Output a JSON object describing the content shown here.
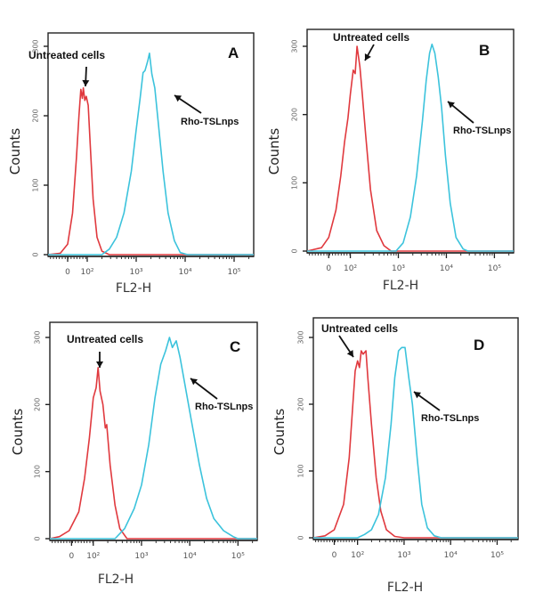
{
  "chart_data": [
    {
      "type": "line",
      "panel": "A",
      "xlabel": "FL2-H",
      "ylabel": "Counts",
      "x_scale": "log (flow cytometry biexponential)",
      "xticks": [
        {
          "value": 1.6,
          "label": "0"
        },
        {
          "value": 2,
          "label": "10²"
        },
        {
          "value": 3,
          "label": "10³"
        },
        {
          "value": 4,
          "label": "10⁴"
        },
        {
          "value": 5,
          "label": "10⁵"
        }
      ],
      "yticks": [
        0,
        100,
        200,
        300
      ],
      "ylim": [
        0,
        320
      ],
      "xlim": [
        1.2,
        5.4
      ],
      "annotations": [
        {
          "text": "Untreated cells",
          "target": "untreated"
        },
        {
          "text": "Rho-TSLnps",
          "target": "rho"
        }
      ],
      "series": [
        {
          "name": "Untreated cells",
          "color": "#e0393e",
          "points": [
            [
              1.2,
              0
            ],
            [
              1.45,
              2
            ],
            [
              1.6,
              15
            ],
            [
              1.7,
              60
            ],
            [
              1.78,
              140
            ],
            [
              1.83,
              200
            ],
            [
              1.87,
              238
            ],
            [
              1.9,
              225
            ],
            [
              1.92,
              240
            ],
            [
              1.95,
              222
            ],
            [
              1.98,
              228
            ],
            [
              2.02,
              215
            ],
            [
              2.06,
              160
            ],
            [
              2.12,
              80
            ],
            [
              2.2,
              25
            ],
            [
              2.3,
              5
            ],
            [
              2.45,
              0
            ],
            [
              5.4,
              0
            ]
          ]
        },
        {
          "name": "Rho-TSLnps",
          "color": "#3cc3dc",
          "points": [
            [
              1.2,
              0
            ],
            [
              2.3,
              0
            ],
            [
              2.45,
              8
            ],
            [
              2.6,
              25
            ],
            [
              2.75,
              60
            ],
            [
              2.9,
              120
            ],
            [
              3.0,
              180
            ],
            [
              3.08,
              225
            ],
            [
              3.14,
              262
            ],
            [
              3.18,
              265
            ],
            [
              3.24,
              280
            ],
            [
              3.27,
              290
            ],
            [
              3.32,
              260
            ],
            [
              3.38,
              240
            ],
            [
              3.45,
              190
            ],
            [
              3.55,
              120
            ],
            [
              3.65,
              60
            ],
            [
              3.78,
              20
            ],
            [
              3.9,
              3
            ],
            [
              4.05,
              0
            ],
            [
              5.4,
              0
            ]
          ]
        }
      ]
    },
    {
      "type": "line",
      "panel": "B",
      "xlabel": "FL2-H",
      "ylabel": "Counts",
      "x_scale": "log (flow cytometry biexponential)",
      "xticks": [
        {
          "value": 1.55,
          "label": "0"
        },
        {
          "value": 2,
          "label": "10²"
        },
        {
          "value": 3,
          "label": "10³"
        },
        {
          "value": 4,
          "label": "10⁴"
        },
        {
          "value": 5,
          "label": "10⁵"
        }
      ],
      "yticks": [
        0,
        100,
        200,
        300
      ],
      "ylim": [
        0,
        320
      ],
      "xlim": [
        1.1,
        5.4
      ],
      "annotations": [
        {
          "text": "Untreated cells",
          "target": "untreated"
        },
        {
          "text": "Rho-TSLnps",
          "target": "rho"
        }
      ],
      "series": [
        {
          "name": "Untreated cells",
          "color": "#e0393e",
          "points": [
            [
              1.1,
              0
            ],
            [
              1.4,
              5
            ],
            [
              1.55,
              20
            ],
            [
              1.7,
              60
            ],
            [
              1.8,
              110
            ],
            [
              1.88,
              160
            ],
            [
              1.95,
              195
            ],
            [
              2.0,
              230
            ],
            [
              2.06,
              265
            ],
            [
              2.1,
              260
            ],
            [
              2.14,
              300
            ],
            [
              2.2,
              270
            ],
            [
              2.25,
              230
            ],
            [
              2.32,
              170
            ],
            [
              2.42,
              90
            ],
            [
              2.55,
              30
            ],
            [
              2.7,
              8
            ],
            [
              2.85,
              0
            ],
            [
              5.4,
              0
            ]
          ]
        },
        {
          "name": "Rho-TSLnps",
          "color": "#3cc3dc",
          "points": [
            [
              1.1,
              0
            ],
            [
              2.95,
              0
            ],
            [
              3.1,
              12
            ],
            [
              3.25,
              50
            ],
            [
              3.38,
              110
            ],
            [
              3.5,
              190
            ],
            [
              3.58,
              250
            ],
            [
              3.65,
              290
            ],
            [
              3.7,
              303
            ],
            [
              3.76,
              290
            ],
            [
              3.83,
              255
            ],
            [
              3.9,
              210
            ],
            [
              3.98,
              140
            ],
            [
              4.08,
              70
            ],
            [
              4.2,
              20
            ],
            [
              4.35,
              3
            ],
            [
              4.45,
              0
            ],
            [
              5.4,
              0
            ]
          ]
        }
      ]
    },
    {
      "type": "line",
      "panel": "C",
      "xlabel": "FL2-H",
      "ylabel": "Counts",
      "x_scale": "log (flow cytometry biexponential)",
      "xticks": [
        {
          "value": 1.55,
          "label": "0"
        },
        {
          "value": 2,
          "label": "10²"
        },
        {
          "value": 3,
          "label": "10³"
        },
        {
          "value": 4,
          "label": "10⁴"
        },
        {
          "value": 5,
          "label": "10⁵"
        }
      ],
      "yticks": [
        0,
        100,
        200,
        300
      ],
      "ylim": [
        0,
        320
      ],
      "xlim": [
        1.1,
        5.4
      ],
      "annotations": [
        {
          "text": "Untreated cells",
          "target": "untreated"
        },
        {
          "text": "Rho-TSLnps",
          "target": "rho"
        }
      ],
      "series": [
        {
          "name": "Untreated cells",
          "color": "#e0393e",
          "points": [
            [
              1.1,
              0
            ],
            [
              1.3,
              3
            ],
            [
              1.5,
              12
            ],
            [
              1.7,
              40
            ],
            [
              1.82,
              90
            ],
            [
              1.92,
              150
            ],
            [
              2.0,
              210
            ],
            [
              2.06,
              225
            ],
            [
              2.1,
              255
            ],
            [
              2.14,
              220
            ],
            [
              2.2,
              200
            ],
            [
              2.25,
              165
            ],
            [
              2.28,
              170
            ],
            [
              2.35,
              110
            ],
            [
              2.45,
              50
            ],
            [
              2.55,
              15
            ],
            [
              2.7,
              0
            ],
            [
              5.4,
              0
            ]
          ]
        },
        {
          "name": "Rho-TSLnps",
          "color": "#3cc3dc",
          "points": [
            [
              1.1,
              0
            ],
            [
              2.45,
              0
            ],
            [
              2.65,
              15
            ],
            [
              2.85,
              45
            ],
            [
              3.0,
              80
            ],
            [
              3.15,
              140
            ],
            [
              3.28,
              210
            ],
            [
              3.4,
              260
            ],
            [
              3.5,
              280
            ],
            [
              3.58,
              300
            ],
            [
              3.64,
              285
            ],
            [
              3.72,
              295
            ],
            [
              3.8,
              270
            ],
            [
              3.9,
              230
            ],
            [
              4.05,
              170
            ],
            [
              4.2,
              110
            ],
            [
              4.35,
              60
            ],
            [
              4.5,
              30
            ],
            [
              4.7,
              12
            ],
            [
              4.9,
              3
            ],
            [
              5.0,
              0
            ],
            [
              5.4,
              0
            ]
          ]
        }
      ]
    },
    {
      "type": "line",
      "panel": "D",
      "xlabel": "FL2-H",
      "ylabel": "Counts",
      "x_scale": "log (flow cytometry biexponential)",
      "xticks": [
        {
          "value": 1.5,
          "label": "0"
        },
        {
          "value": 2,
          "label": "10²"
        },
        {
          "value": 3,
          "label": "10³"
        },
        {
          "value": 4,
          "label": "10⁴"
        },
        {
          "value": 5,
          "label": "10⁵"
        }
      ],
      "yticks": [
        0,
        100,
        200,
        300
      ],
      "ylim": [
        0,
        320
      ],
      "xlim": [
        1.05,
        5.45
      ],
      "annotations": [
        {
          "text": "Untreated cells",
          "target": "untreated"
        },
        {
          "text": "Rho-TSLnps",
          "target": "rho"
        }
      ],
      "series": [
        {
          "name": "Untreated cells",
          "color": "#e0393e",
          "points": [
            [
              1.05,
              0
            ],
            [
              1.3,
              3
            ],
            [
              1.5,
              12
            ],
            [
              1.7,
              50
            ],
            [
              1.82,
              120
            ],
            [
              1.9,
              200
            ],
            [
              1.95,
              250
            ],
            [
              2.0,
              265
            ],
            [
              2.04,
              255
            ],
            [
              2.08,
              280
            ],
            [
              2.12,
              275
            ],
            [
              2.18,
              280
            ],
            [
              2.22,
              240
            ],
            [
              2.3,
              170
            ],
            [
              2.4,
              90
            ],
            [
              2.5,
              40
            ],
            [
              2.62,
              12
            ],
            [
              2.8,
              2
            ],
            [
              3.0,
              0
            ],
            [
              5.45,
              0
            ]
          ]
        },
        {
          "name": "Rho-TSLnps",
          "color": "#3cc3dc",
          "points": [
            [
              1.05,
              0
            ],
            [
              2.0,
              0
            ],
            [
              2.15,
              5
            ],
            [
              2.3,
              12
            ],
            [
              2.45,
              35
            ],
            [
              2.6,
              90
            ],
            [
              2.72,
              170
            ],
            [
              2.8,
              240
            ],
            [
              2.88,
              280
            ],
            [
              2.95,
              285
            ],
            [
              3.02,
              285
            ],
            [
              3.1,
              240
            ],
            [
              3.18,
              200
            ],
            [
              3.28,
              120
            ],
            [
              3.38,
              50
            ],
            [
              3.5,
              15
            ],
            [
              3.65,
              3
            ],
            [
              3.8,
              0
            ],
            [
              5.45,
              0
            ]
          ]
        }
      ]
    }
  ],
  "labels": {
    "untreated": "Untreated cells",
    "rho": "Rho-TSLnps",
    "xlabel": "FL2-H",
    "ylabel": "Counts",
    "panels": [
      "A",
      "B",
      "C",
      "D"
    ]
  }
}
